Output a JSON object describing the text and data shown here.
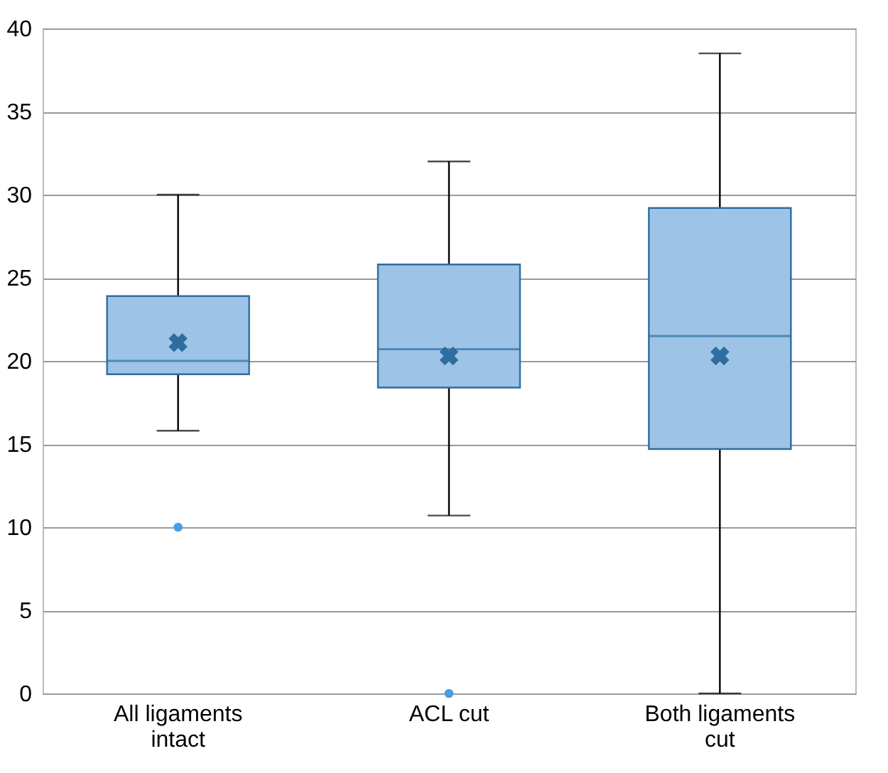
{
  "chart_data": {
    "type": "box",
    "categories": [
      "All ligaments intact",
      "ACL cut",
      "Both ligaments cut"
    ],
    "boxes": [
      {
        "low": 15.8,
        "q1": 19.2,
        "median": 20,
        "q3": 23.9,
        "high": 30,
        "mean": 21.1,
        "outliers": [
          10
        ]
      },
      {
        "low": 10.7,
        "q1": 18.4,
        "median": 20.7,
        "q3": 25.8,
        "high": 32,
        "mean": 20.3,
        "outliers": [
          0
        ]
      },
      {
        "low": 0,
        "q1": 14.7,
        "median": 21.5,
        "q3": 29.2,
        "high": 38.5,
        "mean": 20.3
      }
    ],
    "color": "#9dc3e6",
    "ylim": [
      0,
      40
    ],
    "yticks": [
      0,
      5,
      10,
      15,
      20,
      25,
      30,
      35,
      40
    ],
    "grid": "y"
  }
}
